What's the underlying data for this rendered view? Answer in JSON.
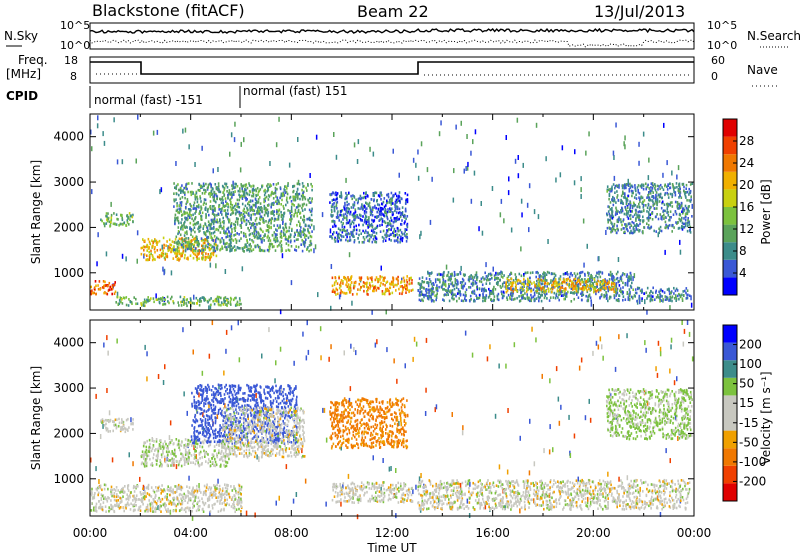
{
  "header": {
    "station": "Blackstone (fitACF)",
    "beam": "Beam 22",
    "date": "13/Jul/2013"
  },
  "panels": {
    "nsky_label": "N.Sky",
    "nsearch_label": "N.Search",
    "nsky_ticks": [
      "10^5",
      "10^0"
    ],
    "freq_label_1": "Freq.",
    "freq_label_2": "[MHz]",
    "freq_ticks": [
      "18",
      "8"
    ],
    "nave_label": "Nave",
    "nave_ticks": [
      "60",
      "0"
    ],
    "cpid_label": "CPID",
    "cpid_segments": [
      "normal (fast) -151",
      "normal (fast) 151"
    ]
  },
  "colors": {
    "power": [
      "#0000ff",
      "#3a58d6",
      "#3c8c8a",
      "#5aa35a",
      "#7cc23e",
      "#c8d010",
      "#f0b000",
      "#f07800",
      "#f04000",
      "#e00000"
    ],
    "velocity": [
      "#e00000",
      "#f04000",
      "#f07800",
      "#f0a000",
      "#c8c8c0",
      "#c8c8c0",
      "#7cc23e",
      "#3c8c8a",
      "#3a58d6",
      "#0000ff"
    ]
  },
  "chart_data": [
    {
      "type": "heatmap",
      "name": "Power",
      "xlabel": "",
      "ylabel": "Slant Range [km]",
      "xlim_hours": [
        0,
        24
      ],
      "ylim_km": [
        180,
        4500
      ],
      "yticks": [
        1000,
        2000,
        3000,
        4000
      ],
      "colorbar": {
        "label": "Power [dB]",
        "range": [
          0,
          32
        ],
        "ticks": [
          4,
          8,
          12,
          16,
          20,
          24,
          28
        ]
      },
      "regions": [
        {
          "t": [
            0.0,
            1.0
          ],
          "r": [
            550,
            850
          ],
          "value": 26
        },
        {
          "t": [
            1.0,
            6.0
          ],
          "r": [
            300,
            500
          ],
          "value": 12
        },
        {
          "t": [
            0.4,
            1.7
          ],
          "r": [
            2050,
            2350
          ],
          "value": 12
        },
        {
          "t": [
            2.0,
            5.0
          ],
          "r": [
            1300,
            1800
          ],
          "value": 20
        },
        {
          "t": [
            3.3,
            8.8
          ],
          "r": [
            1500,
            3000
          ],
          "value": 10
        },
        {
          "t": [
            9.5,
            12.6
          ],
          "r": [
            1700,
            2800
          ],
          "value": 6
        },
        {
          "t": [
            9.6,
            12.8
          ],
          "r": [
            550,
            950
          ],
          "value": 22
        },
        {
          "t": [
            13.0,
            21.5
          ],
          "r": [
            400,
            1050
          ],
          "value": 8
        },
        {
          "t": [
            16.5,
            20.9
          ],
          "r": [
            600,
            900
          ],
          "value": 20
        },
        {
          "t": [
            21.3,
            23.8
          ],
          "r": [
            400,
            700
          ],
          "value": 8
        },
        {
          "t": [
            20.5,
            23.9
          ],
          "r": [
            1900,
            3000
          ],
          "value": 8
        }
      ]
    },
    {
      "type": "heatmap",
      "name": "Velocity",
      "xlabel": "Time UT",
      "ylabel": "Slant Range [km]",
      "xlim_hours": [
        0,
        24
      ],
      "ylim_km": [
        180,
        4500
      ],
      "xticks": [
        "00:00",
        "04:00",
        "08:00",
        "12:00",
        "16:00",
        "20:00",
        "00:00"
      ],
      "yticks": [
        1000,
        2000,
        3000,
        4000
      ],
      "colorbar": {
        "label": "Velocity [m s⁻¹]",
        "ticks": [
          200,
          100,
          50,
          15,
          -15,
          -50,
          -100,
          -200
        ]
      },
      "regions": [
        {
          "t": [
            0.0,
            6.0
          ],
          "r": [
            300,
            900
          ],
          "value": 0
        },
        {
          "t": [
            0.4,
            1.7
          ],
          "r": [
            2050,
            2350
          ],
          "value": 0
        },
        {
          "t": [
            2.0,
            5.5
          ],
          "r": [
            1300,
            1900
          ],
          "value": 10
        },
        {
          "t": [
            4.0,
            8.2
          ],
          "r": [
            1800,
            3100
          ],
          "value": 150
        },
        {
          "t": [
            5.2,
            8.5
          ],
          "r": [
            1500,
            2600
          ],
          "value": 0
        },
        {
          "t": [
            9.5,
            12.6
          ],
          "r": [
            1700,
            2800
          ],
          "value": -60
        },
        {
          "t": [
            9.6,
            12.8
          ],
          "r": [
            500,
            950
          ],
          "value": 0
        },
        {
          "t": [
            13.0,
            23.8
          ],
          "r": [
            350,
            1000
          ],
          "value": 0
        },
        {
          "t": [
            20.5,
            23.9
          ],
          "r": [
            1900,
            3000
          ],
          "value": 20
        }
      ]
    }
  ]
}
